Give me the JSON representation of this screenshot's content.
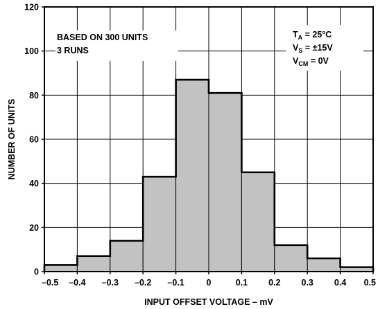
{
  "chart_data": {
    "type": "bar",
    "title": "",
    "xlabel": "INPUT OFFSET VOLTAGE – mV",
    "ylabel": "NUMBER OF UNITS",
    "bin_edges": [
      -0.5,
      -0.4,
      -0.3,
      -0.2,
      -0.1,
      0,
      0.1,
      0.2,
      0.3,
      0.4,
      0.5
    ],
    "values": [
      3,
      7,
      14,
      43,
      87,
      81,
      45,
      12,
      6,
      2
    ],
    "xlim": [
      -0.5,
      0.5
    ],
    "ylim": [
      0,
      120
    ],
    "x_ticks": [
      -0.5,
      -0.4,
      -0.3,
      -0.2,
      -0.1,
      0,
      0.1,
      0.2,
      0.3,
      0.4,
      0.5
    ],
    "x_tick_labels": [
      "–0.5",
      "–0.4",
      "–0.3",
      "–0.2",
      "–0.1",
      "0",
      "0.1",
      "0.2",
      "0.3",
      "0.4",
      "0.5"
    ],
    "y_ticks": [
      0,
      20,
      40,
      60,
      80,
      100,
      120
    ],
    "y_tick_labels": [
      "0",
      "20",
      "40",
      "60",
      "80",
      "100",
      "120"
    ],
    "grid": true,
    "bar_fill": "#c2c2c2",
    "annotations_left": [
      "BASED ON 300 UNITS",
      "3 RUNS"
    ],
    "annotations_right": {
      "ta": {
        "main": "T",
        "sub": "A",
        "rest": " = 25°C"
      },
      "vs": {
        "main": "V",
        "sub": "S",
        "rest": " = ±15V"
      },
      "vcm": {
        "main": "V",
        "sub": "CM",
        "rest": " = 0V"
      }
    }
  }
}
